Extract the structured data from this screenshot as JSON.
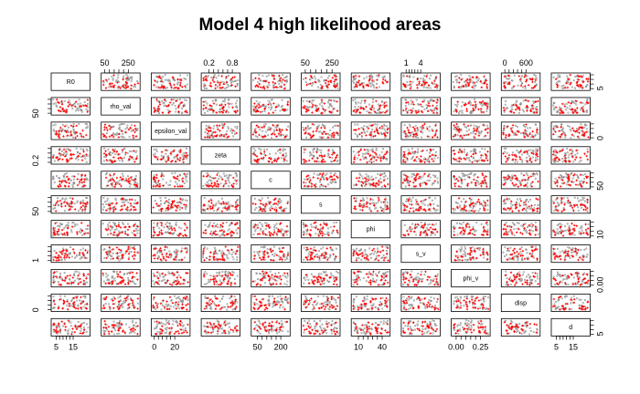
{
  "chart_data": {
    "type": "scatter",
    "subtype": "scatterplot-matrix",
    "title": "Model 4 high likelihood areas",
    "variables": [
      "R0",
      "rho_val",
      "epsilon_val",
      "zeta",
      "c",
      "s",
      "phi",
      "s_v",
      "phi_v",
      "disp",
      "d"
    ],
    "ranges": {
      "R0": [
        2,
        25
      ],
      "rho_val": [
        20,
        350
      ],
      "epsilon_val": [
        -3,
        35
      ],
      "zeta": [
        0,
        1
      ],
      "c": [
        10,
        260
      ],
      "s": [
        20,
        310
      ],
      "phi": [
        1,
        50
      ],
      "s_v": [
        0,
        8
      ],
      "phi_v": [
        -0.05,
        0.35
      ],
      "disp": [
        -100,
        1000
      ],
      "d": [
        2,
        25
      ]
    },
    "axis_ticks": {
      "top": [
        {
          "variable": "rho_val",
          "labels": [
            "50",
            "250"
          ],
          "values": [
            50,
            250
          ]
        },
        {
          "variable": "zeta",
          "labels": [
            "0.2",
            "0.8"
          ],
          "values": [
            0.2,
            0.8
          ]
        },
        {
          "variable": "s",
          "labels": [
            "50",
            "250"
          ],
          "values": [
            50,
            250
          ]
        },
        {
          "variable": "s_v",
          "labels": [
            "1",
            "4"
          ],
          "values": [
            1,
            4
          ]
        },
        {
          "variable": "disp",
          "labels": [
            "0",
            "600"
          ],
          "values": [
            0,
            600
          ]
        }
      ],
      "bottom": [
        {
          "variable": "R0",
          "labels": [
            "5",
            "15"
          ],
          "values": [
            5,
            15
          ]
        },
        {
          "variable": "epsilon_val",
          "labels": [
            "0",
            "20"
          ],
          "values": [
            0,
            20
          ]
        },
        {
          "variable": "c",
          "labels": [
            "50",
            "200"
          ],
          "values": [
            50,
            200
          ]
        },
        {
          "variable": "phi",
          "labels": [
            "10",
            "40"
          ],
          "values": [
            10,
            40
          ]
        },
        {
          "variable": "phi_v",
          "labels": [
            "0.00",
            "0.25"
          ],
          "values": [
            0,
            0.25
          ]
        },
        {
          "variable": "d",
          "labels": [
            "5",
            "15"
          ],
          "values": [
            5,
            15
          ]
        }
      ],
      "left": [
        {
          "variable": "rho_val",
          "labels": [
            "50"
          ],
          "values": [
            50
          ]
        },
        {
          "variable": "zeta",
          "labels": [
            "0.2"
          ],
          "values": [
            0.2
          ]
        },
        {
          "variable": "s",
          "labels": [
            "50"
          ],
          "values": [
            50
          ]
        },
        {
          "variable": "s_v",
          "labels": [
            "1"
          ],
          "values": [
            1
          ]
        },
        {
          "variable": "disp",
          "labels": [
            "0"
          ],
          "values": [
            0
          ]
        }
      ],
      "right": [
        {
          "variable": "R0",
          "labels": [
            "5"
          ],
          "values": [
            5
          ]
        },
        {
          "variable": "epsilon_val",
          "labels": [
            "0"
          ],
          "values": [
            0
          ]
        },
        {
          "variable": "c",
          "labels": [
            "50"
          ],
          "values": [
            50
          ]
        },
        {
          "variable": "phi",
          "labels": [
            "10"
          ],
          "values": [
            10
          ]
        },
        {
          "variable": "phi_v",
          "labels": [
            "0.00"
          ],
          "values": [
            0
          ]
        },
        {
          "variable": "d",
          "labels": [
            "5"
          ],
          "values": [
            5
          ]
        }
      ]
    },
    "series": [
      {
        "color": "#888888",
        "marker": "o",
        "role": "all sampled parameter sets",
        "points_per_panel": 40
      },
      {
        "color": "#ff0000",
        "marker": "+",
        "role": "high likelihood parameter sets",
        "points_per_panel": 30
      }
    ],
    "grid": false,
    "legend": "none"
  }
}
